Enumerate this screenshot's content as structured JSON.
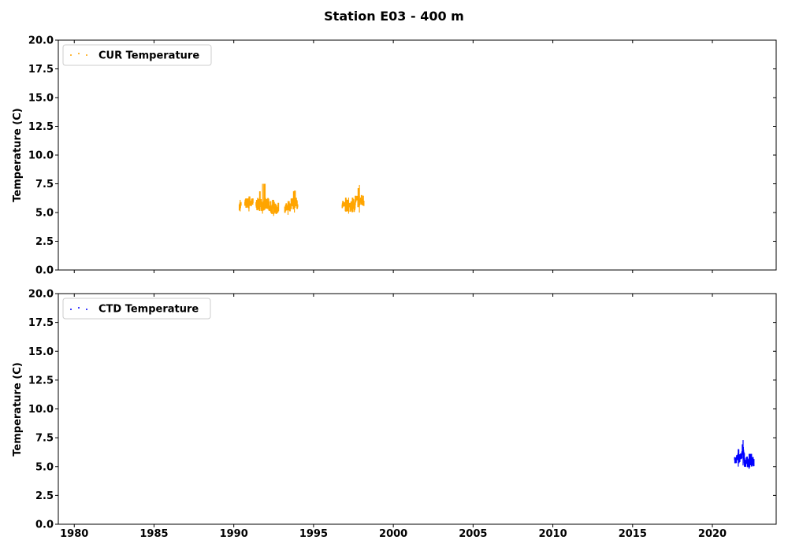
{
  "figure": {
    "title": "Station E03 - 400 m"
  },
  "chart_data": [
    {
      "type": "scatter",
      "series": [
        {
          "name": "CUR Temperature",
          "color": "#ffa500",
          "segments": [
            {
              "x": [
                1990.35,
                1990.45
              ],
              "y": [
                5.1,
                6.1
              ],
              "base": 5.6,
              "amp": 0.3
            },
            {
              "x": [
                1990.7,
                1991.2
              ],
              "y": [
                5.1,
                6.4
              ],
              "base": 5.8,
              "amp": 0.35
            },
            {
              "x": [
                1991.4,
                1992.2
              ],
              "y": [
                4.9,
                7.5
              ],
              "base": 5.7,
              "amp": 0.45
            },
            {
              "x": [
                1992.2,
                1992.8
              ],
              "y": [
                4.7,
                6.1
              ],
              "base": 5.3,
              "amp": 0.35
            },
            {
              "x": [
                1993.2,
                1993.6
              ],
              "y": [
                4.8,
                6.0
              ],
              "base": 5.4,
              "amp": 0.3
            },
            {
              "x": [
                1993.6,
                1994.0
              ],
              "y": [
                5.0,
                6.9
              ],
              "base": 5.8,
              "amp": 0.4
            },
            {
              "x": [
                1996.8,
                1997.6
              ],
              "y": [
                4.9,
                6.3
              ],
              "base": 5.5,
              "amp": 0.35
            },
            {
              "x": [
                1997.6,
                1998.15
              ],
              "y": [
                5.0,
                7.4
              ],
              "base": 6.0,
              "amp": 0.45
            }
          ]
        }
      ],
      "xlim": [
        1979,
        2024
      ],
      "ylim": [
        0,
        20
      ],
      "xticks": [
        "1980",
        "1985",
        "1990",
        "1995",
        "2000",
        "2005",
        "2010",
        "2015",
        "2020"
      ],
      "yticks": [
        "0.0",
        "2.5",
        "5.0",
        "7.5",
        "10.0",
        "12.5",
        "15.0",
        "17.5",
        "20.0"
      ],
      "xticklabels_visible": false,
      "ylabel": "Temperature (C)",
      "legend": "upper-left",
      "grid": false
    },
    {
      "type": "scatter",
      "series": [
        {
          "name": "CTD Temperature",
          "color": "#0000ff",
          "segments": [
            {
              "x": [
                2021.4,
                2021.85
              ],
              "y": [
                5.0,
                6.5
              ],
              "base": 5.7,
              "amp": 0.35
            },
            {
              "x": [
                2021.85,
                2022.0
              ],
              "y": [
                5.1,
                7.3
              ],
              "base": 6.1,
              "amp": 0.5
            },
            {
              "x": [
                2022.0,
                2022.6
              ],
              "y": [
                4.8,
                6.1
              ],
              "base": 5.4,
              "amp": 0.35
            }
          ]
        }
      ],
      "xlim": [
        1979,
        2024
      ],
      "ylim": [
        0,
        20
      ],
      "xticks": [
        "1980",
        "1985",
        "1990",
        "1995",
        "2000",
        "2005",
        "2010",
        "2015",
        "2020"
      ],
      "yticks": [
        "0.0",
        "2.5",
        "5.0",
        "7.5",
        "10.0",
        "12.5",
        "15.0",
        "17.5",
        "20.0"
      ],
      "xticklabels_visible": true,
      "ylabel": "Temperature (C)",
      "legend": "upper-left",
      "grid": false
    }
  ]
}
